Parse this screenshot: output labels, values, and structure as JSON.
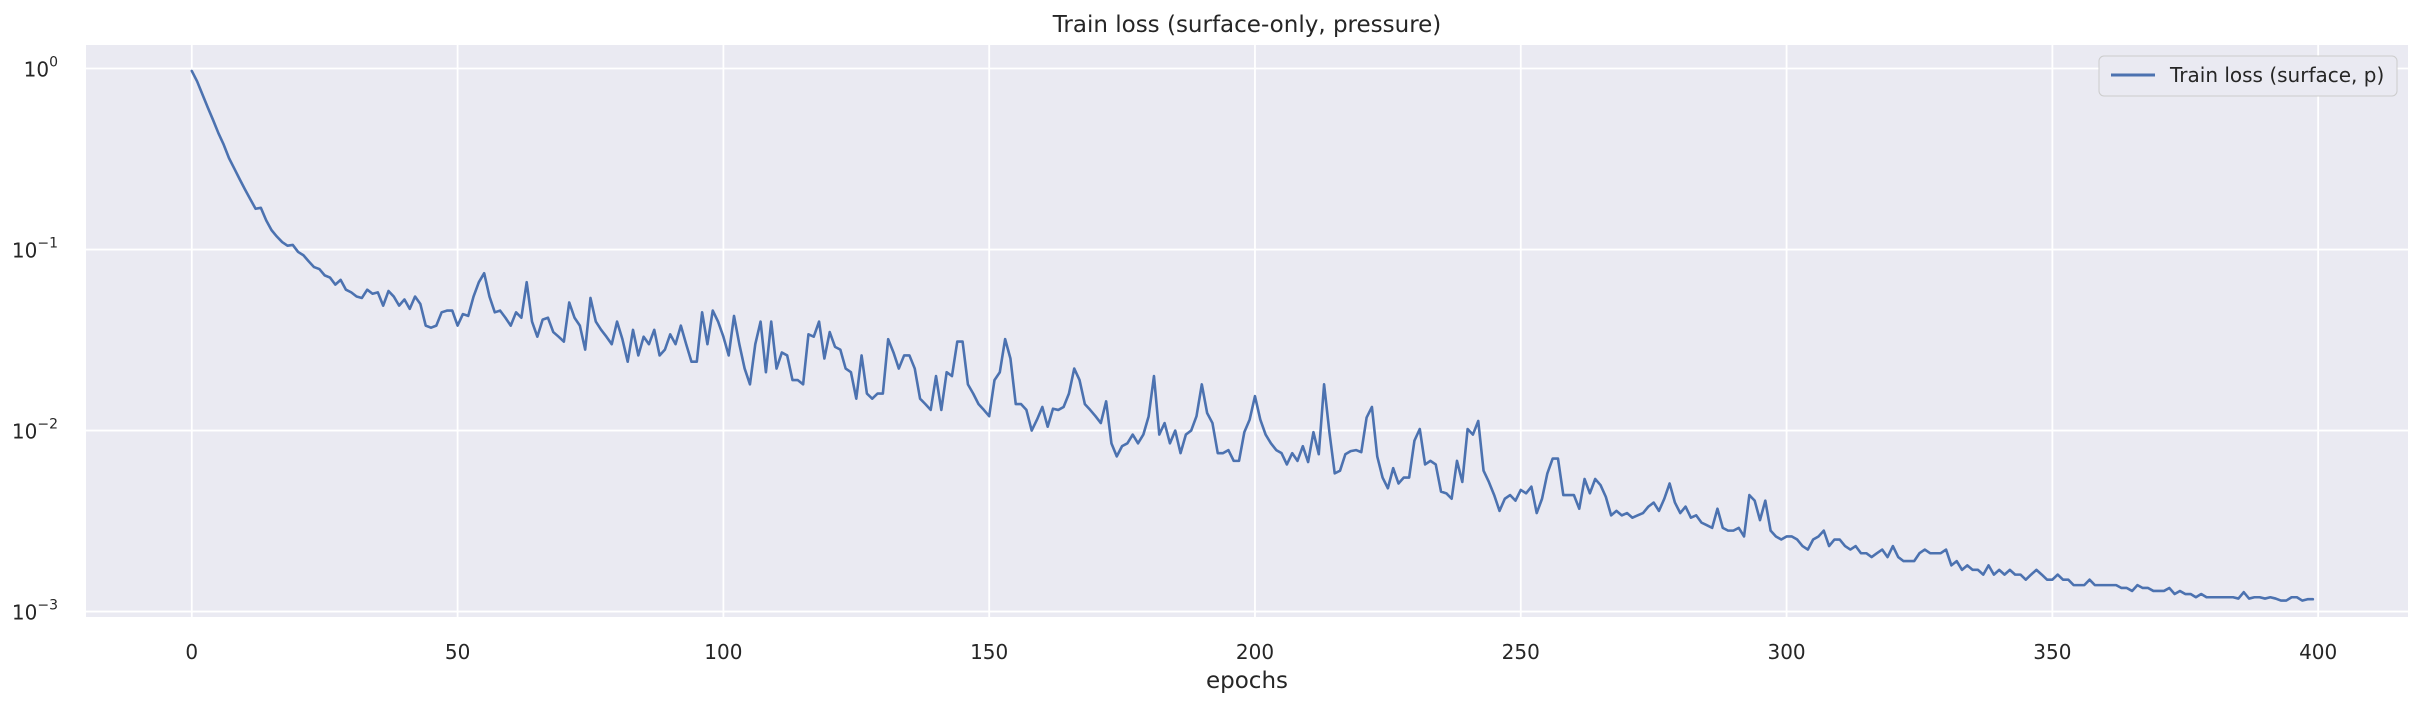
{
  "chart_data": {
    "type": "line",
    "title": "Train loss (surface-only, pressure)",
    "xlabel": "epochs",
    "ylabel": "",
    "xlim": [
      -19.9,
      416.9
    ],
    "ylim_log10": [
      -3.03,
      0.13
    ],
    "yscale": "log",
    "x_ticks": [
      0,
      50,
      100,
      150,
      200,
      250,
      300,
      350,
      400
    ],
    "y_ticks": [
      {
        "exp": 0,
        "base": "10",
        "power": "0"
      },
      {
        "exp": -1,
        "base": "10",
        "power": "−1"
      },
      {
        "exp": -2,
        "base": "10",
        "power": "−2"
      },
      {
        "exp": -3,
        "base": "10",
        "power": "−3"
      }
    ],
    "grid": true,
    "legend_position": "top-right",
    "colors": {
      "background": "#EAEAF2",
      "grid": "#FFFFFF",
      "series": "#4C72B0"
    },
    "series": [
      {
        "name": "Train loss (surface, p)",
        "x_start": 0,
        "x_step": 1,
        "values": [
          0.97,
          0.85,
          0.72,
          0.61,
          0.52,
          0.44,
          0.38,
          0.32,
          0.28,
          0.245,
          0.215,
          0.19,
          0.168,
          0.17,
          0.145,
          0.128,
          0.118,
          0.11,
          0.105,
          0.106,
          0.097,
          0.093,
          0.086,
          0.08,
          0.078,
          0.072,
          0.07,
          0.064,
          0.068,
          0.06,
          0.058,
          0.055,
          0.054,
          0.06,
          0.057,
          0.058,
          0.049,
          0.059,
          0.055,
          0.049,
          0.053,
          0.047,
          0.055,
          0.05,
          0.038,
          0.037,
          0.038,
          0.045,
          0.046,
          0.046,
          0.038,
          0.044,
          0.043,
          0.055,
          0.066,
          0.074,
          0.055,
          0.045,
          0.046,
          0.042,
          0.038,
          0.045,
          0.042,
          0.066,
          0.04,
          0.033,
          0.041,
          0.042,
          0.035,
          0.033,
          0.031,
          0.051,
          0.042,
          0.038,
          0.028,
          0.054,
          0.04,
          0.036,
          0.033,
          0.03,
          0.04,
          0.032,
          0.024,
          0.036,
          0.026,
          0.033,
          0.03,
          0.036,
          0.026,
          0.028,
          0.034,
          0.03,
          0.038,
          0.03,
          0.024,
          0.024,
          0.045,
          0.03,
          0.046,
          0.04,
          0.033,
          0.026,
          0.043,
          0.03,
          0.022,
          0.018,
          0.03,
          0.04,
          0.021,
          0.04,
          0.022,
          0.027,
          0.026,
          0.019,
          0.019,
          0.018,
          0.034,
          0.033,
          0.04,
          0.025,
          0.035,
          0.029,
          0.028,
          0.022,
          0.021,
          0.015,
          0.026,
          0.016,
          0.015,
          0.016,
          0.016,
          0.032,
          0.027,
          0.022,
          0.026,
          0.026,
          0.022,
          0.015,
          0.014,
          0.013,
          0.02,
          0.013,
          0.021,
          0.02,
          0.031,
          0.031,
          0.018,
          0.016,
          0.014,
          0.013,
          0.012,
          0.019,
          0.021,
          0.032,
          0.025,
          0.014,
          0.014,
          0.013,
          0.01,
          0.0115,
          0.0135,
          0.0105,
          0.0132,
          0.013,
          0.0135,
          0.016,
          0.022,
          0.019,
          0.014,
          0.013,
          0.012,
          0.011,
          0.0145,
          0.0085,
          0.0072,
          0.0082,
          0.0085,
          0.0095,
          0.0085,
          0.0095,
          0.012,
          0.02,
          0.0095,
          0.011,
          0.0085,
          0.01,
          0.0075,
          0.0095,
          0.01,
          0.012,
          0.018,
          0.0125,
          0.011,
          0.0075,
          0.0075,
          0.0078,
          0.0068,
          0.0068,
          0.0098,
          0.0115,
          0.0155,
          0.0115,
          0.0095,
          0.0085,
          0.0078,
          0.0075,
          0.0065,
          0.0075,
          0.0068,
          0.0082,
          0.0067,
          0.0098,
          0.0074,
          0.018,
          0.0098,
          0.0058,
          0.006,
          0.0074,
          0.0077,
          0.0078,
          0.0076,
          0.0118,
          0.0135,
          0.0072,
          0.0055,
          0.0048,
          0.0062,
          0.0051,
          0.0055,
          0.0055,
          0.0088,
          0.0102,
          0.0065,
          0.0068,
          0.0065,
          0.0046,
          0.0045,
          0.0042,
          0.0068,
          0.0052,
          0.0102,
          0.0095,
          0.0113,
          0.006,
          0.0052,
          0.0044,
          0.0036,
          0.0042,
          0.0044,
          0.0041,
          0.0047,
          0.0045,
          0.0049,
          0.0035,
          0.0042,
          0.0058,
          0.007,
          0.007,
          0.0044,
          0.0044,
          0.0044,
          0.0037,
          0.0054,
          0.0045,
          0.0054,
          0.005,
          0.0043,
          0.0034,
          0.0036,
          0.0034,
          0.0035,
          0.0033,
          0.0034,
          0.0035,
          0.0038,
          0.004,
          0.0036,
          0.0042,
          0.0051,
          0.004,
          0.0035,
          0.0038,
          0.0033,
          0.0034,
          0.0031,
          0.003,
          0.0029,
          0.0037,
          0.0029,
          0.0028,
          0.0028,
          0.0029,
          0.0026,
          0.0044,
          0.0041,
          0.0032,
          0.0041,
          0.0028,
          0.0026,
          0.0025,
          0.0026,
          0.0026,
          0.0025,
          0.0023,
          0.0022,
          0.0025,
          0.0026,
          0.0028,
          0.0023,
          0.0025,
          0.0025,
          0.0023,
          0.0022,
          0.0023,
          0.0021,
          0.0021,
          0.002,
          0.0021,
          0.0022,
          0.002,
          0.0023,
          0.002,
          0.0019,
          0.0019,
          0.0019,
          0.0021,
          0.0022,
          0.0021,
          0.0021,
          0.0021,
          0.0022,
          0.0018,
          0.0019,
          0.0017,
          0.0018,
          0.0017,
          0.0017,
          0.0016,
          0.0018,
          0.0016,
          0.0017,
          0.0016,
          0.0017,
          0.0016,
          0.0016,
          0.0015,
          0.0016,
          0.0017,
          0.0016,
          0.0015,
          0.0015,
          0.0016,
          0.0015,
          0.0015,
          0.0014,
          0.0014,
          0.0014,
          0.0015,
          0.0014,
          0.0014,
          0.0014,
          0.0014,
          0.0014,
          0.00135,
          0.00135,
          0.0013,
          0.0014,
          0.00135,
          0.00135,
          0.0013,
          0.0013,
          0.0013,
          0.00135,
          0.00125,
          0.0013,
          0.00125,
          0.00125,
          0.0012,
          0.00125,
          0.0012,
          0.0012,
          0.0012,
          0.0012,
          0.0012,
          0.0012,
          0.00118,
          0.00128,
          0.00118,
          0.0012,
          0.0012,
          0.00118,
          0.0012,
          0.00118,
          0.00115,
          0.00115,
          0.0012,
          0.0012,
          0.00115,
          0.00117,
          0.00117
        ]
      }
    ]
  }
}
